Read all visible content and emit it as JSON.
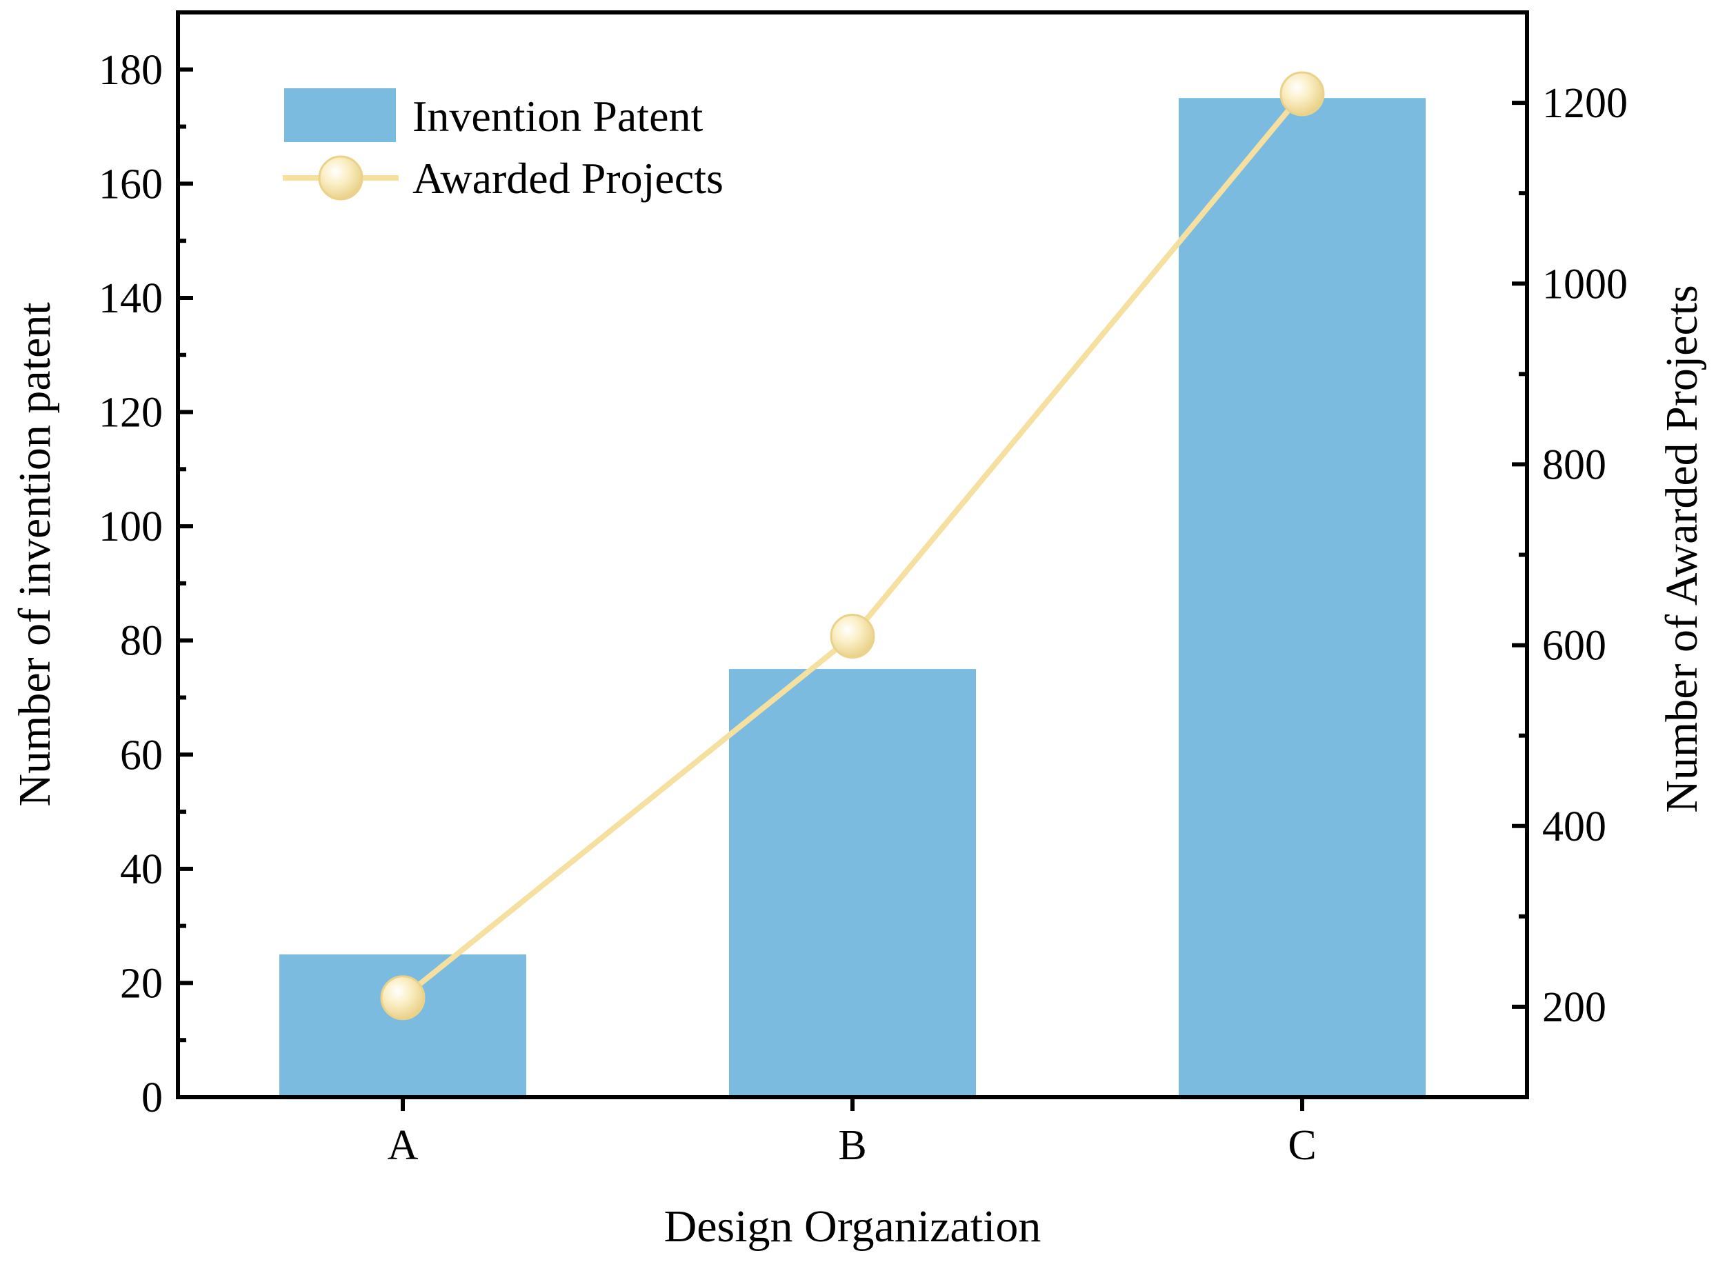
{
  "chart_data": {
    "type": "bar+line",
    "categories": [
      "A",
      "B",
      "C"
    ],
    "xlabel": "Design Organization",
    "ylabel_left": "Number of invention patent",
    "ylabel_right": "Number of Awarded Projects",
    "ylim_left": [
      0,
      190
    ],
    "ylim_right": [
      100,
      1300
    ],
    "yticks_left": [
      "0",
      "20",
      "40",
      "60",
      "80",
      "100",
      "120",
      "140",
      "160",
      "180"
    ],
    "yticks_right": [
      "200",
      "400",
      "600",
      "800",
      "1000",
      "1200"
    ],
    "series": [
      {
        "name": "Invention Patent",
        "type": "bar",
        "axis": "left",
        "color": "#7BBBE0",
        "values": [
          25,
          75,
          175
        ]
      },
      {
        "name": "Awarded Projects",
        "type": "line",
        "axis": "right",
        "color": "#F5E0A0",
        "values": [
          210,
          610,
          1210
        ]
      }
    ],
    "legend_position": "top-left",
    "grid": false
  }
}
